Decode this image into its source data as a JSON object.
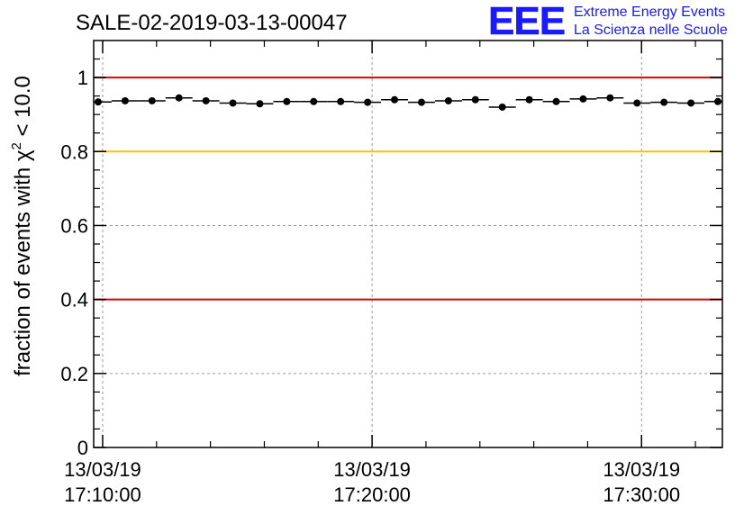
{
  "logo": {
    "mark": "EEE",
    "line1": "Extreme Energy Events",
    "line2": "La Scienza nelle Scuole"
  },
  "colors": {
    "logo": "#1a1aff",
    "red_line": "#dd0000",
    "yellow_line": "#ffc000",
    "grid": "#9a9a9a",
    "marker": "#000000"
  },
  "chart_data": {
    "type": "scatter",
    "title": "SALE-02-2019-03-13-00047",
    "ylabel_main": "fraction of events with ",
    "ylabel_chi": "χ",
    "ylabel_sup": "2",
    "ylabel_rest": " < 10.0",
    "ylim": [
      0,
      1.1
    ],
    "yticks": [
      0,
      0.2,
      0.4,
      0.6,
      0.8,
      1
    ],
    "ytick_labels": [
      "0",
      "0.2",
      "0.4",
      "0.6",
      "0.8",
      "1"
    ],
    "xlim": [
      "2019-03-13 17:09:40",
      "2019-03-13 17:33:00"
    ],
    "xticks": [
      {
        "time": "2019-03-13 17:10:00",
        "date": "13/03/19",
        "clock": "17:10:00"
      },
      {
        "time": "2019-03-13 17:20:00",
        "date": "13/03/19",
        "clock": "17:20:00"
      },
      {
        "time": "2019-03-13 17:30:00",
        "date": "13/03/19",
        "clock": "17:30:00"
      }
    ],
    "minor_xticks": [
      "2019-03-13 17:12:00",
      "2019-03-13 17:14:00",
      "2019-03-13 17:16:00",
      "2019-03-13 17:18:00",
      "2019-03-13 17:22:00",
      "2019-03-13 17:24:00",
      "2019-03-13 17:26:00",
      "2019-03-13 17:28:00",
      "2019-03-13 17:32:00"
    ],
    "bin_width_seconds": 60,
    "x": [
      "2019-03-13 17:09:50",
      "2019-03-13 17:10:50",
      "2019-03-13 17:11:50",
      "2019-03-13 17:12:50",
      "2019-03-13 17:13:50",
      "2019-03-13 17:14:50",
      "2019-03-13 17:15:50",
      "2019-03-13 17:16:50",
      "2019-03-13 17:17:50",
      "2019-03-13 17:18:50",
      "2019-03-13 17:19:50",
      "2019-03-13 17:20:50",
      "2019-03-13 17:21:50",
      "2019-03-13 17:22:50",
      "2019-03-13 17:23:50",
      "2019-03-13 17:24:50",
      "2019-03-13 17:25:50",
      "2019-03-13 17:26:50",
      "2019-03-13 17:27:50",
      "2019-03-13 17:28:50",
      "2019-03-13 17:29:50",
      "2019-03-13 17:30:50",
      "2019-03-13 17:31:50",
      "2019-03-13 17:32:50"
    ],
    "y": [
      0.934,
      0.937,
      0.937,
      0.945,
      0.937,
      0.931,
      0.929,
      0.935,
      0.935,
      0.935,
      0.933,
      0.94,
      0.933,
      0.937,
      0.94,
      0.92,
      0.94,
      0.935,
      0.942,
      0.945,
      0.931,
      0.933,
      0.931,
      0.935
    ],
    "reference_lines": [
      {
        "y": 1.0,
        "color": "#dd0000"
      },
      {
        "y": 0.8,
        "color": "#ffc000"
      },
      {
        "y": 0.4,
        "color": "#dd0000"
      }
    ],
    "grid": true
  }
}
